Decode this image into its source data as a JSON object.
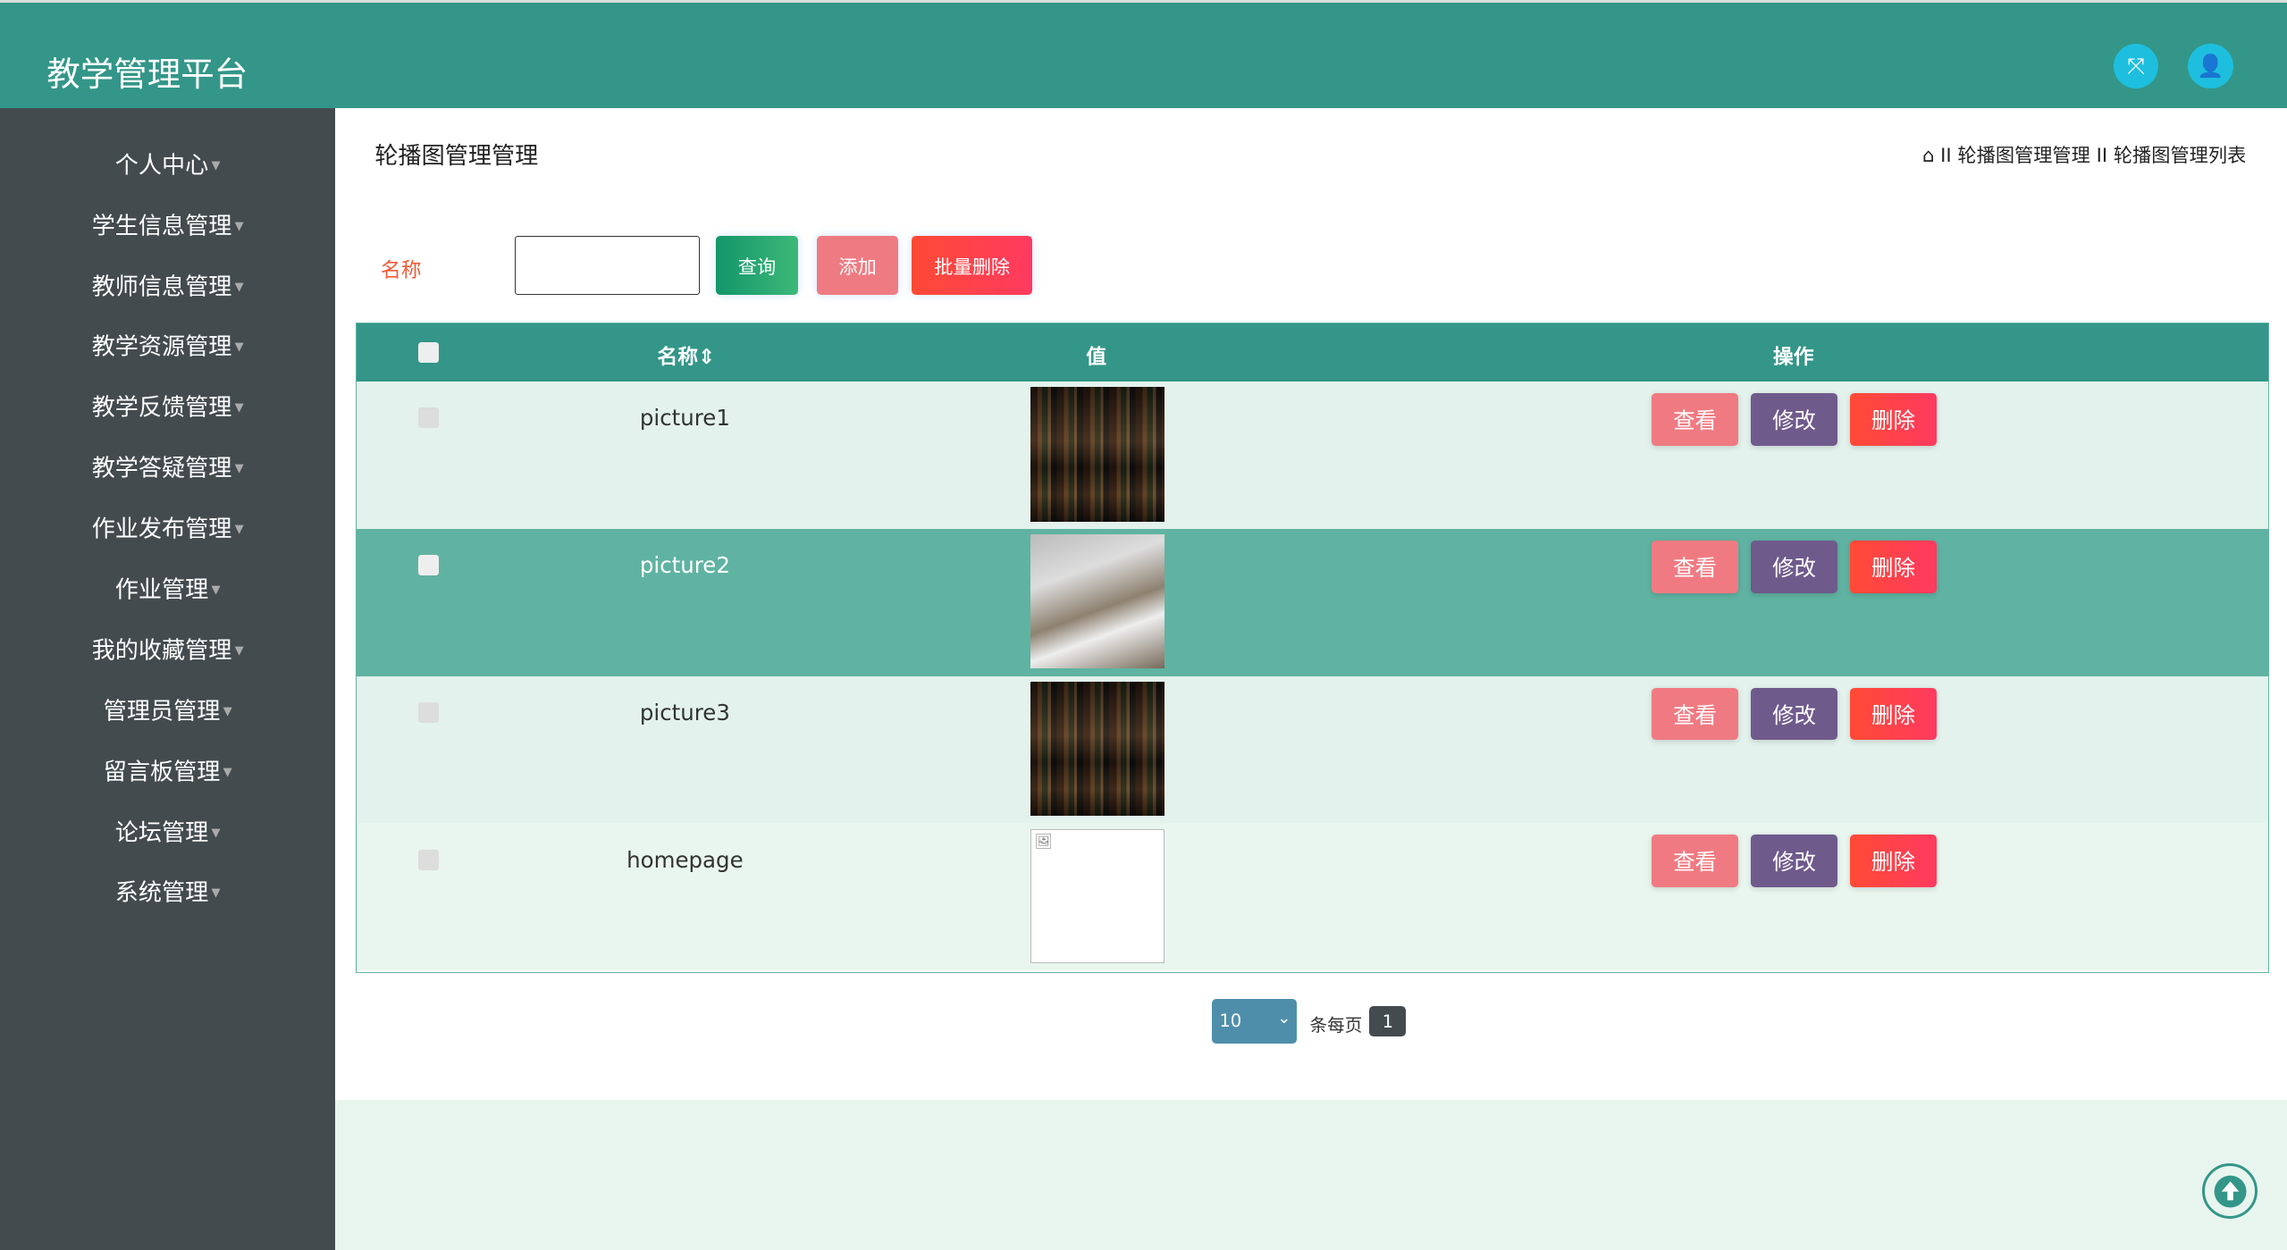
{
  "header": {
    "title": "教学管理平台",
    "icons": [
      "fullscreen-icon",
      "user-icon"
    ]
  },
  "sidebar": {
    "items": [
      "个人中心",
      "学生信息管理",
      "教师信息管理",
      "教学资源管理",
      "教学反馈管理",
      "教学答疑管理",
      "作业发布管理",
      "作业管理",
      "我的收藏管理",
      "管理员管理",
      "留言板管理",
      "论坛管理",
      "系统管理"
    ]
  },
  "page": {
    "title": "轮播图管理管理",
    "breadcrumb": [
      "轮播图管理管理",
      "轮播图管理列表"
    ],
    "separator": "II"
  },
  "search": {
    "label": "名称",
    "value": "",
    "query": "查询",
    "add": "添加",
    "batch_delete": "批量删除"
  },
  "table": {
    "headers": {
      "name": "名称⇕",
      "value": "值",
      "actions": "操作"
    },
    "rows": [
      {
        "name": "picture1",
        "image": "books"
      },
      {
        "name": "picture2",
        "image": "photo"
      },
      {
        "name": "picture3",
        "image": "books"
      },
      {
        "name": "homepage",
        "image": "broken"
      }
    ],
    "actions": {
      "view": "查看",
      "edit": "修改",
      "delete": "删除"
    }
  },
  "pagination": {
    "page_size": "10",
    "per_page_label": "条每页",
    "current_page": "1"
  },
  "colors": {
    "header": "#339688",
    "sidebar": "#434b4f",
    "row_alt": "#60b3a2",
    "row": "#e3f2ec"
  }
}
